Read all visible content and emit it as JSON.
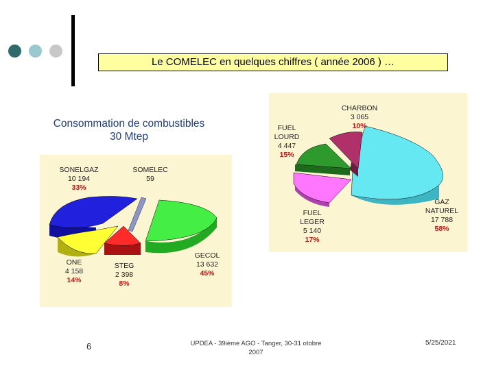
{
  "title": "Le COMELEC en quelques chiffres ( année 2006 ) …",
  "consumption": {
    "title_line1": "Consommation de combustibles",
    "title_line2": "30 Mtep"
  },
  "left_chart": {
    "type": "pie",
    "slices": [
      {
        "name": "SONELGAZ",
        "value": "10 194",
        "pct": "33%",
        "color": "#1f1fd6"
      },
      {
        "name": "SOMELEC",
        "value": "59",
        "pct": "",
        "color": "#9aa3d0"
      },
      {
        "name": "GECOL",
        "value": "13 632",
        "pct": "45%",
        "color": "#44dd44"
      },
      {
        "name": "STEG",
        "value": "2 398",
        "pct": "8%",
        "color": "#ee2222"
      },
      {
        "name": "ONE",
        "value": "4 158",
        "pct": "14%",
        "color": "#ffff22"
      }
    ]
  },
  "right_chart": {
    "type": "pie",
    "slices": [
      {
        "name_line1": "CHARBON",
        "name_line2": "",
        "value": "3 065",
        "pct": "10%",
        "color": "#b0306a"
      },
      {
        "name_line1": "FUEL",
        "name_line2": "LOURD",
        "value": "4 447",
        "pct": "15%",
        "color": "#2e9a2e"
      },
      {
        "name_line1": "FUEL",
        "name_line2": "LEGER",
        "value": "5 140",
        "pct": "17%",
        "color": "#ff66ff"
      },
      {
        "name_line1": "GAZ",
        "name_line2": "NATUREL",
        "value": "17 788",
        "pct": "58%",
        "color": "#66e8f2"
      }
    ]
  },
  "footer": {
    "page_number": "6",
    "center_line1": "UPDEA - 39ième AGO - Tanger, 30-31 otobre",
    "center_line2": "2007",
    "date": "5/25/2021"
  },
  "colors": {
    "dot1": "#2f6b6b",
    "dot2": "#99c8cf",
    "dot3": "#c8c8c8",
    "title_bg": "#ffffa0",
    "panel_bg": "#fbf5d1",
    "consumption_title": "#1e3a8a"
  }
}
